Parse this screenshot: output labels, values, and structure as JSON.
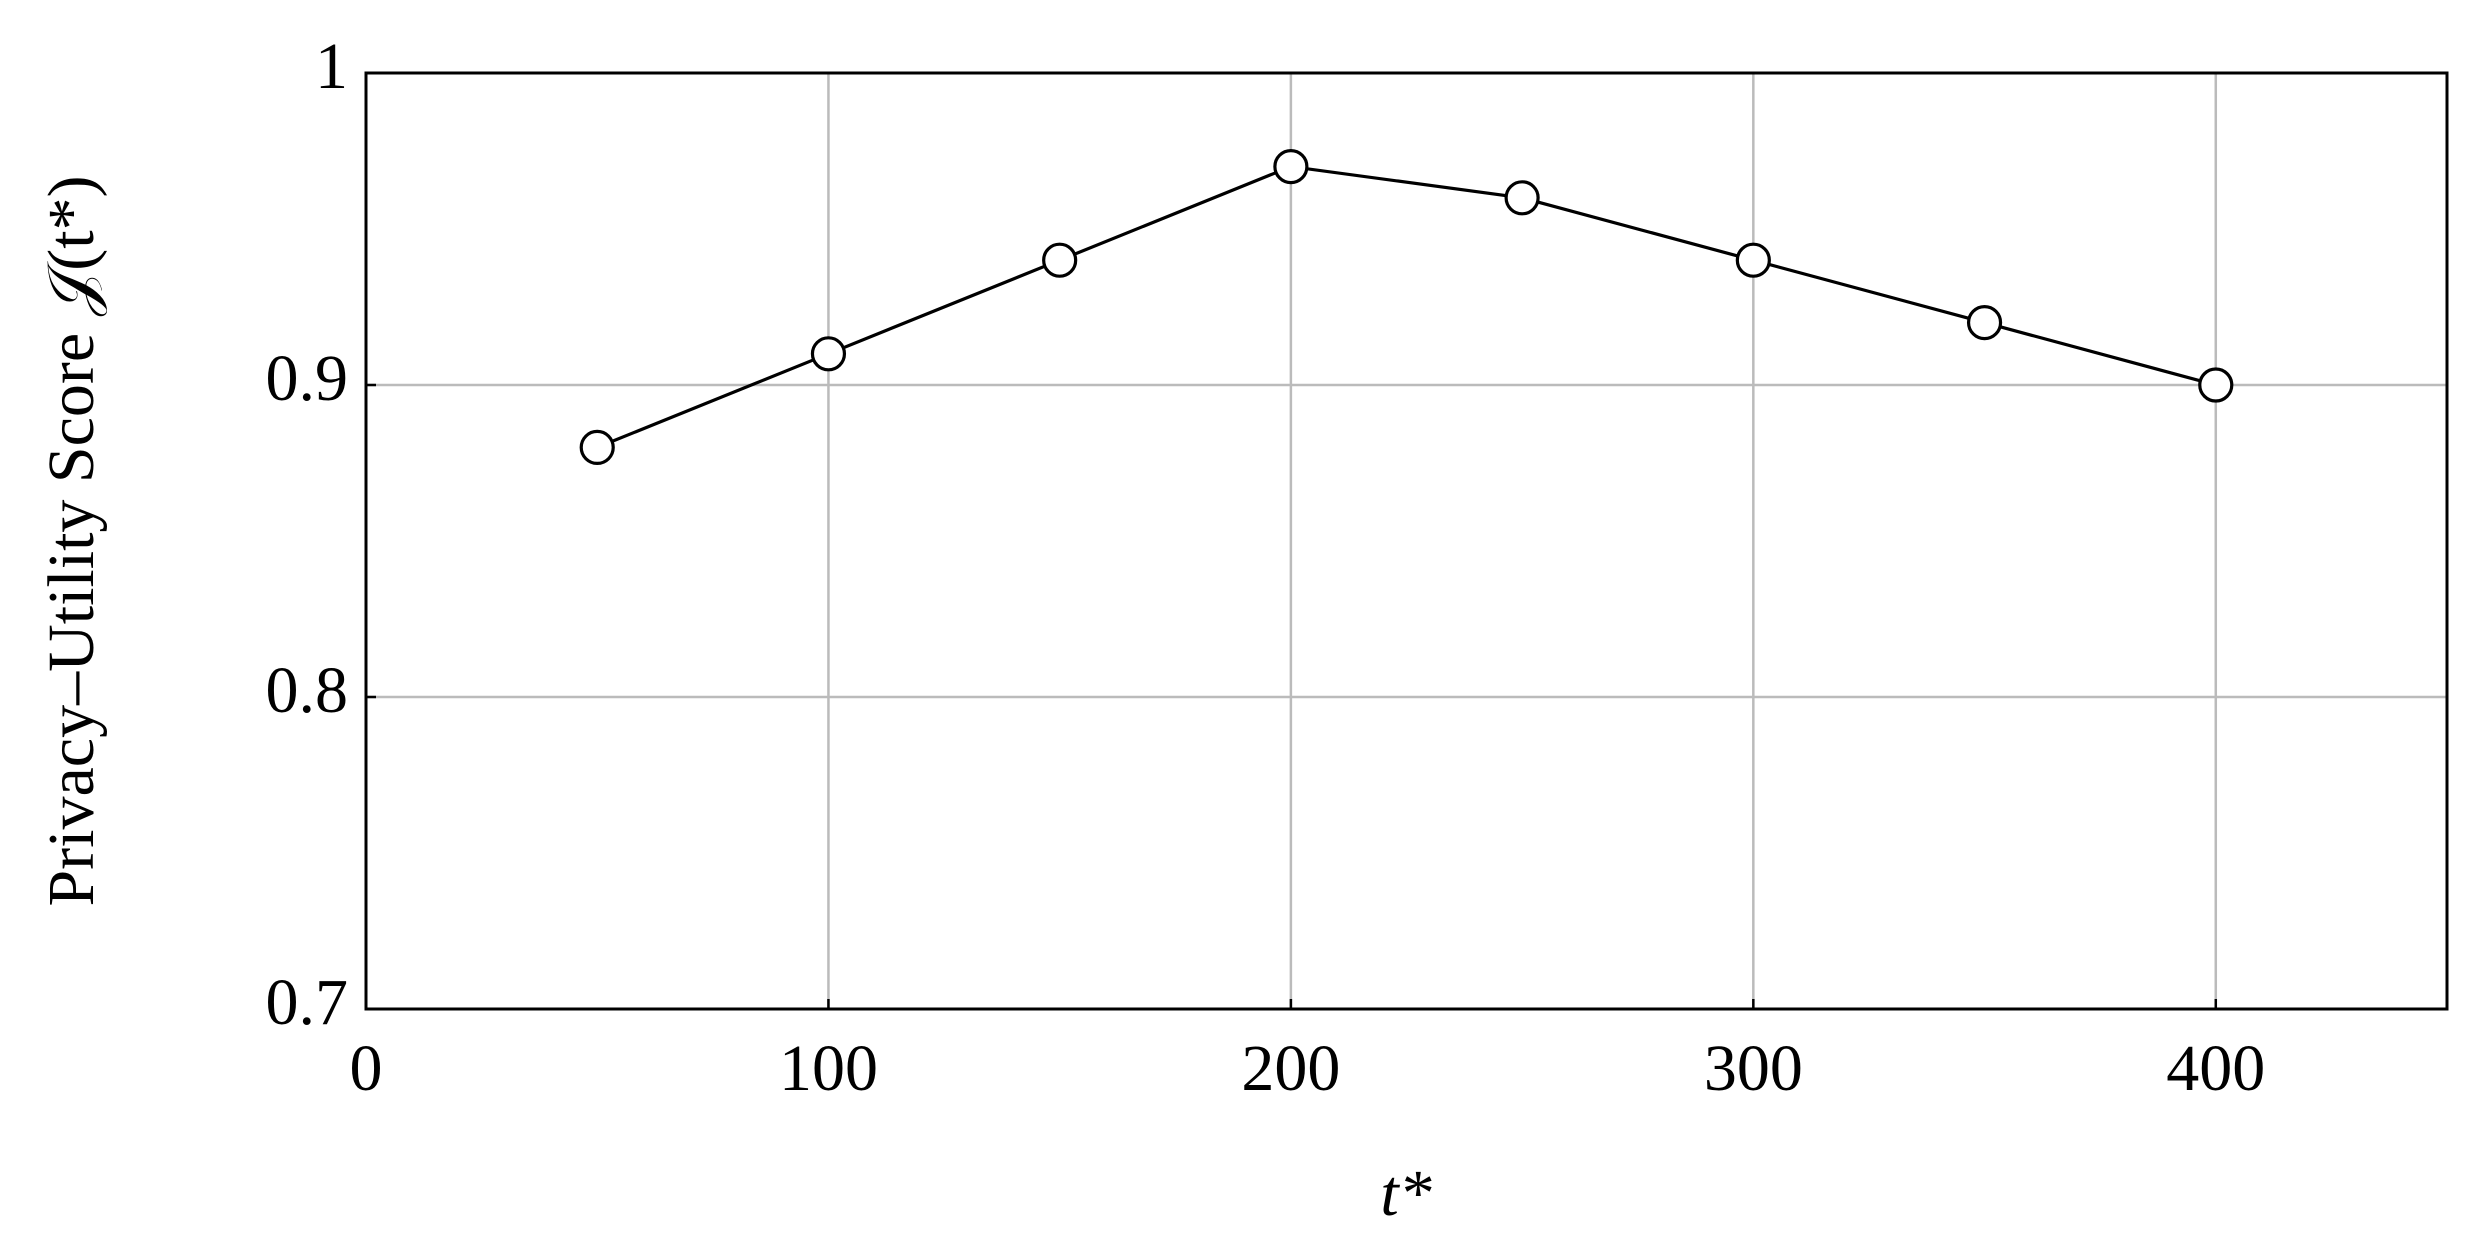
{
  "chart_data": {
    "type": "line",
    "x_label": "t*",
    "y_label": "Privacy–Utility Score 𝒥(t*)",
    "x": [
      50,
      100,
      150,
      200,
      250,
      300,
      350,
      400
    ],
    "series": [
      {
        "color": "#000000",
        "values": [
          0.88,
          0.91,
          0.94,
          0.97,
          0.96,
          0.94,
          0.92,
          0.9
        ]
      }
    ],
    "xlim": [
      0,
      450
    ],
    "ylim": [
      0.7,
      1
    ],
    "xticks": [
      0,
      100,
      200,
      300,
      400
    ],
    "yticks": [
      0.7,
      0.8,
      0.9,
      1
    ],
    "grid": true
  }
}
